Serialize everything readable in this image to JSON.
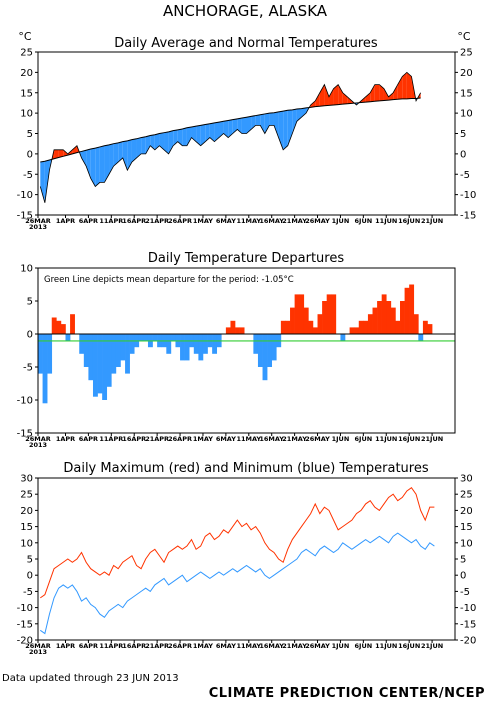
{
  "page": {
    "title": "ANCHORAGE, ALASKA",
    "updated": "Data updated through 23 JUN 2013",
    "credit": "CLIMATE PREDICTION CENTER/NCEP"
  },
  "colors": {
    "warm": "#ff3300",
    "cold": "#3399ff",
    "normal": "#000000",
    "mean_line": "#33cc33",
    "max": "#ff3300",
    "min": "#3399ff"
  },
  "chart_data": [
    {
      "type": "area",
      "title": "Daily Average and Normal Temperatures",
      "unit_left": "°C",
      "unit_right": "°C",
      "ylim": [
        -15,
        25
      ],
      "yticks": [
        -15,
        -10,
        -5,
        0,
        5,
        10,
        15,
        20,
        25
      ],
      "x_ticks": [
        "26MAR",
        "1APR",
        "6APR",
        "11APR",
        "16APR",
        "21APR",
        "26APR",
        "1MAY",
        "6MAY",
        "11MAY",
        "16MAY",
        "21MAY",
        "26MAY",
        "1JUN",
        "6JUN",
        "11JUN",
        "16JUN",
        "21JUN"
      ],
      "x_year": "2013",
      "series": [
        {
          "values": [
            -8,
            -12,
            -4,
            1,
            1,
            1,
            0,
            1,
            2,
            -1,
            -3,
            -6,
            -8,
            -7,
            -7,
            -5,
            -3,
            -2,
            -1,
            -4,
            -2,
            -1,
            0,
            0,
            2,
            1,
            2,
            1,
            0,
            2,
            3,
            2,
            2,
            4,
            3,
            2,
            3,
            4,
            3,
            4,
            5,
            4,
            5,
            6,
            5,
            5,
            6,
            7,
            7,
            5,
            7,
            7,
            4,
            1,
            2,
            5,
            8,
            9,
            10,
            12,
            13,
            15,
            17,
            14,
            16,
            17,
            15,
            14,
            13,
            12,
            13,
            14,
            15,
            17,
            17,
            16,
            14,
            15,
            17,
            19,
            20,
            19,
            13,
            15
          ]
        },
        {
          "values": [
            -2,
            -1.8,
            -1.5,
            -1.2,
            -0.9,
            -0.6,
            -0.3,
            0,
            0.3,
            0.6,
            0.9,
            1.2,
            1.4,
            1.7,
            2,
            2.2,
            2.5,
            2.7,
            3,
            3.2,
            3.5,
            3.7,
            4,
            4.2,
            4.5,
            4.7,
            5,
            5.2,
            5.4,
            5.7,
            5.9,
            6.1,
            6.4,
            6.6,
            6.8,
            7,
            7.2,
            7.4,
            7.6,
            7.8,
            8,
            8.2,
            8.4,
            8.6,
            8.8,
            9,
            9.2,
            9.4,
            9.6,
            9.8,
            10,
            10.1,
            10.3,
            10.5,
            10.7,
            10.8,
            11,
            11.1,
            11.3,
            11.4,
            11.6,
            11.7,
            11.8,
            11.9,
            12,
            12.1,
            12.2,
            12.3,
            12.4,
            12.5,
            12.6,
            12.7,
            12.8,
            12.9,
            13,
            13.1,
            13.2,
            13.3,
            13.4,
            13.5,
            13.5,
            13.6,
            13.6,
            13.7
          ]
        }
      ]
    },
    {
      "type": "bar",
      "title": "Daily Temperature Departures",
      "annotation": "Green Line depicts mean departure for the period: -1.05°C",
      "mean_departure": -1.05,
      "ylim": [
        -15,
        10
      ],
      "yticks": [
        -15,
        -10,
        -5,
        0,
        5,
        10
      ],
      "x_ticks": [
        "26MAR",
        "1APR",
        "6APR",
        "11APR",
        "16APR",
        "21APR",
        "26APR",
        "1MAY",
        "6MAY",
        "11MAY",
        "16MAY",
        "21MAY",
        "26MAY",
        "1JUN",
        "6JUN",
        "11JUN",
        "16JUN",
        "21JUN"
      ],
      "x_year": "2013",
      "values": [
        -6,
        -10.5,
        -6,
        2.5,
        2,
        1.5,
        -1,
        3,
        0,
        -3,
        -5,
        -7,
        -9.5,
        -9,
        -10,
        -8,
        -6,
        -5,
        -4,
        -6,
        -3,
        -2,
        -1,
        -1,
        -2,
        -1,
        -2,
        -2,
        -3,
        -1,
        -2,
        -4,
        -4,
        -2,
        -3,
        -4,
        -3,
        -2,
        -3,
        -2,
        0,
        1,
        2,
        1,
        1,
        0,
        0,
        -3,
        -5,
        -7,
        -5,
        -4,
        -2,
        2,
        2,
        4,
        6,
        6,
        4,
        2,
        1,
        3,
        5,
        6,
        6,
        0,
        -1,
        0,
        1,
        1,
        2,
        2,
        3,
        4,
        5,
        6,
        5,
        4,
        2,
        5,
        7,
        7.5,
        3,
        -1,
        2,
        1.5
      ]
    },
    {
      "type": "line",
      "title": "Daily Maximum (red) and Minimum (blue) Temperatures",
      "ylim": [
        -20,
        30
      ],
      "yticks": [
        -20,
        -15,
        -10,
        -5,
        0,
        5,
        10,
        15,
        20,
        25,
        30
      ],
      "x_ticks": [
        "26MAR",
        "1APR",
        "6APR",
        "11APR",
        "16APR",
        "21APR",
        "26APR",
        "1MAY",
        "6MAY",
        "11MAY",
        "16MAY",
        "21MAY",
        "26MAY",
        "1JUN",
        "6JUN",
        "11JUN",
        "16JUN",
        "21JUN"
      ],
      "x_year": "2013",
      "series": [
        {
          "name": "Maximum",
          "values": [
            -7,
            -6,
            -2,
            2,
            3,
            4,
            5,
            4,
            5,
            7,
            4,
            2,
            1,
            0,
            1,
            0,
            3,
            2,
            4,
            5,
            6,
            3,
            2,
            5,
            7,
            8,
            6,
            4,
            7,
            8,
            9,
            8,
            9,
            11,
            8,
            9,
            12,
            13,
            11,
            12,
            14,
            13,
            15,
            17,
            15,
            16,
            14,
            15,
            13,
            10,
            8,
            7,
            5,
            4,
            8,
            11,
            13,
            15,
            17,
            19,
            22,
            19,
            21,
            20,
            17,
            14,
            15,
            16,
            17,
            19,
            20,
            22,
            23,
            21,
            20,
            22,
            24,
            25,
            23,
            24,
            26,
            27,
            25,
            20,
            17,
            21,
            21
          ]
        },
        {
          "name": "Minimum",
          "values": [
            -17,
            -18,
            -12,
            -7,
            -4,
            -3,
            -4,
            -3,
            -5,
            -8,
            -7,
            -9,
            -10,
            -12,
            -13,
            -11,
            -10,
            -9,
            -10,
            -8,
            -7,
            -6,
            -5,
            -4,
            -5,
            -3,
            -2,
            -1,
            -3,
            -2,
            -1,
            0,
            -2,
            -1,
            0,
            1,
            0,
            -1,
            0,
            1,
            0,
            1,
            2,
            1,
            2,
            3,
            2,
            1,
            2,
            0,
            -1,
            0,
            1,
            2,
            3,
            4,
            5,
            7,
            8,
            7,
            6,
            8,
            9,
            8,
            7,
            8,
            10,
            9,
            8,
            9,
            10,
            11,
            10,
            11,
            12,
            11,
            10,
            12,
            13,
            12,
            11,
            10,
            11,
            9,
            8,
            10,
            9
          ]
        }
      ]
    }
  ]
}
